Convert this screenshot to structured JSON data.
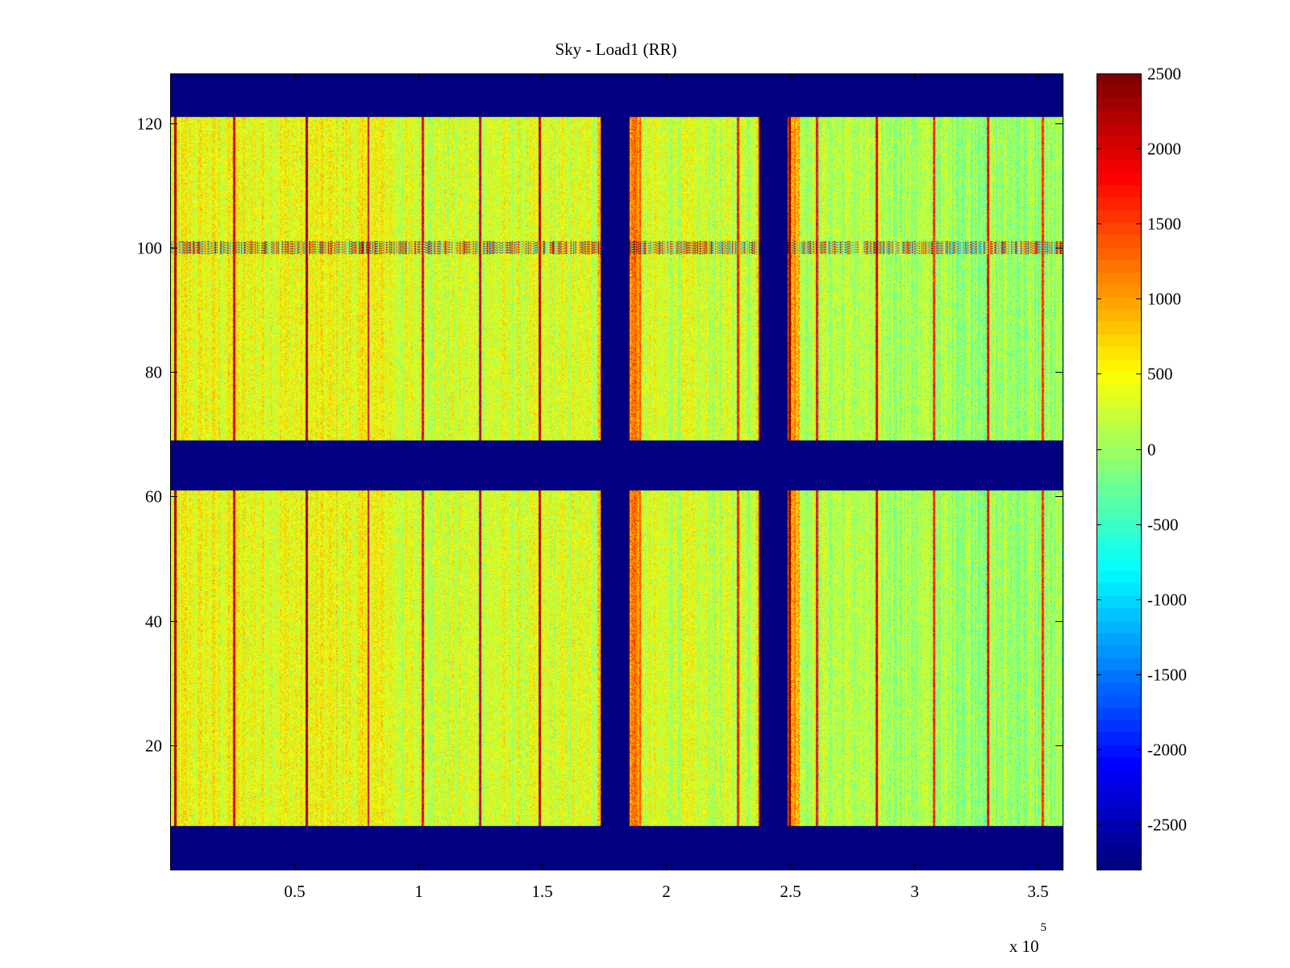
{
  "chart_data": {
    "type": "heatmap",
    "title": "Sky - Load1 (RR)",
    "xlabel": "",
    "ylabel": "",
    "x_scale_label": "x 10",
    "x_scale_exponent": "5",
    "xlim": [
      0,
      3.6
    ],
    "ylim": [
      0,
      128
    ],
    "x_ticks": [
      0.5,
      1,
      1.5,
      2,
      2.5,
      3,
      3.5
    ],
    "x_tick_labels": [
      "0.5",
      "1",
      "1.5",
      "2",
      "2.5",
      "3",
      "3.5"
    ],
    "y_ticks": [
      20,
      40,
      60,
      80,
      100,
      120
    ],
    "y_tick_labels": [
      "20",
      "40",
      "60",
      "80",
      "100",
      "120"
    ],
    "colormap": "jet",
    "clim": [
      -2800,
      2500
    ],
    "colorbar_ticks": [
      2500,
      2000,
      1500,
      1000,
      500,
      0,
      -500,
      -1000,
      -1500,
      -2000,
      -2500
    ],
    "colorbar_tick_labels": [
      "2500",
      "2000",
      "1500",
      "1000",
      "500",
      "0",
      "-500",
      "-1000",
      "-1500",
      "-2000",
      "-2500"
    ],
    "colorbar_location": "right",
    "masked_value": -2800,
    "masked_channel_ranges": [
      [
        0,
        7
      ],
      [
        61,
        69
      ],
      [
        121,
        128
      ]
    ],
    "masked_time_ranges": [
      [
        1.74,
        1.85
      ],
      [
        2.38,
        2.49
      ]
    ],
    "rfi_channel": 100,
    "bright_time_columns": [
      0.02,
      0.26,
      0.55,
      0.8,
      1.02,
      1.25,
      1.49,
      1.74,
      1.85,
      2.29,
      2.38,
      2.5,
      2.61,
      2.85,
      3.08,
      3.3,
      3.52
    ],
    "grid": false
  }
}
